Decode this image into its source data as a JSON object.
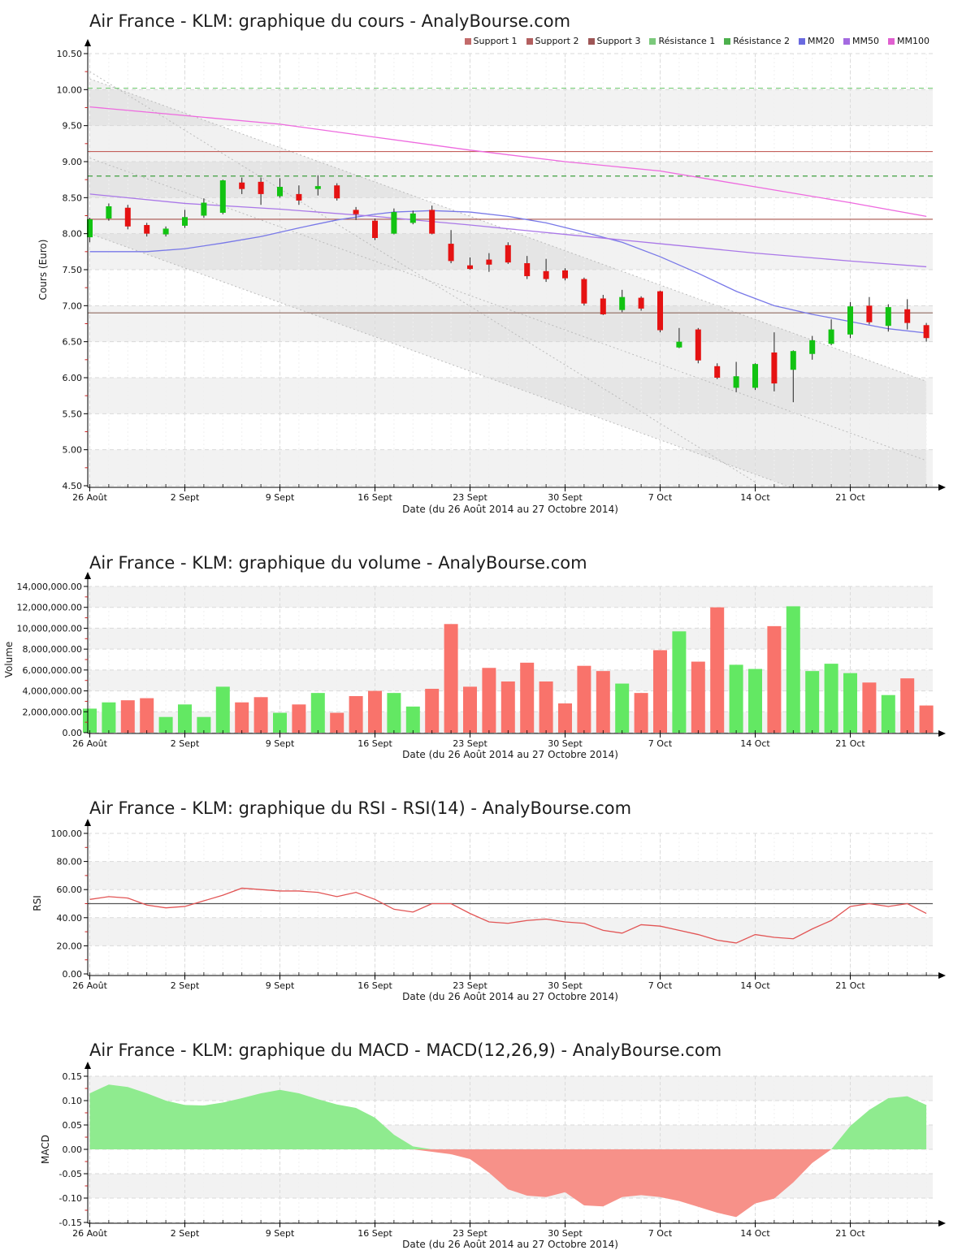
{
  "site": "AnalyBourse.com",
  "instrument": "Air France - KLM",
  "axis": {
    "caption": "Date (du 26 Août 2014 au 27 Octobre 2014)",
    "x_tick_labels": [
      "26 Août",
      "2 Sept",
      "9 Sept",
      "16 Sept",
      "23 Sept",
      "30 Sept",
      "7 Oct",
      "14 Oct",
      "21 Oct"
    ],
    "x_tick_days": [
      0,
      5,
      10,
      15,
      20,
      25,
      30,
      35,
      40
    ],
    "n_points": 45
  },
  "legend": [
    {
      "label": "Support 1",
      "color": "#C36B6B"
    },
    {
      "label": "Support 2",
      "color": "#B35F5F"
    },
    {
      "label": "Support 3",
      "color": "#9E5656"
    },
    {
      "label": "Résistance 1",
      "color": "#7BC97B"
    },
    {
      "label": "Résistance 2",
      "color": "#4DB04D"
    },
    {
      "label": "MM20",
      "color": "#6A6AE0"
    },
    {
      "label": "MM50",
      "color": "#A46AE0"
    },
    {
      "label": "MM100",
      "color": "#E060D0"
    }
  ],
  "chart_data": [
    {
      "type": "candlestick",
      "name": "price",
      "title": "Air France - KLM: graphique du cours - AnalyBourse.com",
      "ylabel": "Cours (Euro)",
      "xlabel": "Date (du 26 Août 2014 au 27 Octobre 2014)",
      "ylim": [
        4.5,
        10.5
      ],
      "y_ticks": [
        "10.50",
        "10.00",
        "9.50",
        "9.00",
        "8.50",
        "8.00",
        "7.50",
        "7.00",
        "6.50",
        "6.00",
        "5.50",
        "5.00",
        "4.50"
      ],
      "up_color": "#12C312",
      "down_color": "#E51212",
      "ohlc": [
        [
          7.95,
          8.22,
          7.88,
          8.2
        ],
        [
          8.21,
          8.42,
          8.18,
          8.38
        ],
        [
          8.36,
          8.4,
          8.06,
          8.1
        ],
        [
          8.12,
          8.15,
          7.96,
          8.0
        ],
        [
          7.99,
          8.1,
          7.96,
          8.07
        ],
        [
          8.11,
          8.33,
          8.08,
          8.23
        ],
        [
          8.25,
          8.49,
          8.22,
          8.43
        ],
        [
          8.29,
          8.75,
          8.27,
          8.74
        ],
        [
          8.71,
          8.78,
          8.55,
          8.62
        ],
        [
          8.72,
          8.78,
          8.4,
          8.55
        ],
        [
          8.52,
          8.77,
          8.5,
          8.65
        ],
        [
          8.55,
          8.67,
          8.4,
          8.46
        ],
        [
          8.62,
          8.81,
          8.53,
          8.66
        ],
        [
          8.67,
          8.7,
          8.46,
          8.49
        ],
        [
          8.33,
          8.37,
          8.19,
          8.27
        ],
        [
          8.18,
          8.21,
          7.91,
          7.94
        ],
        [
          8.0,
          8.35,
          7.99,
          8.3
        ],
        [
          8.15,
          8.32,
          8.13,
          8.28
        ],
        [
          8.33,
          8.39,
          7.99,
          8.0
        ],
        [
          7.86,
          8.05,
          7.59,
          7.62
        ],
        [
          7.56,
          7.67,
          7.5,
          7.51
        ],
        [
          7.64,
          7.73,
          7.47,
          7.57
        ],
        [
          7.84,
          7.88,
          7.58,
          7.6
        ],
        [
          7.59,
          7.69,
          7.37,
          7.41
        ],
        [
          7.48,
          7.65,
          7.33,
          7.37
        ],
        [
          7.49,
          7.52,
          7.35,
          7.38
        ],
        [
          7.37,
          7.39,
          7.0,
          7.03
        ],
        [
          7.1,
          7.15,
          6.87,
          6.88
        ],
        [
          6.94,
          7.22,
          6.91,
          7.12
        ],
        [
          7.11,
          7.13,
          6.93,
          6.96
        ],
        [
          7.2,
          7.21,
          6.63,
          6.66
        ],
        [
          6.42,
          6.69,
          6.41,
          6.5
        ],
        [
          6.67,
          6.69,
          6.2,
          6.24
        ],
        [
          6.16,
          6.2,
          5.98,
          6.0
        ],
        [
          5.86,
          6.22,
          5.8,
          6.02
        ],
        [
          5.86,
          6.2,
          5.83,
          6.19
        ],
        [
          6.35,
          6.63,
          5.81,
          5.92
        ],
        [
          6.11,
          6.38,
          5.66,
          6.37
        ],
        [
          6.33,
          6.58,
          6.25,
          6.52
        ],
        [
          6.47,
          6.81,
          6.45,
          6.67
        ],
        [
          6.6,
          7.05,
          6.55,
          6.99
        ],
        [
          7.0,
          7.12,
          6.74,
          6.77
        ],
        [
          6.72,
          7.02,
          6.64,
          6.98
        ],
        [
          6.95,
          7.09,
          6.67,
          6.76
        ],
        [
          6.73,
          6.76,
          6.5,
          6.55
        ]
      ],
      "levels": [
        {
          "name": "Support 1",
          "value": 9.14,
          "color": "#C4615C",
          "style": "solid"
        },
        {
          "name": "Support 2",
          "value": 8.2,
          "color": "#A8544E",
          "style": "solid"
        },
        {
          "name": "Support 3",
          "value": 6.9,
          "color": "#8F6A5F",
          "style": "solid"
        },
        {
          "name": "Résistance 1",
          "value": 10.02,
          "color": "#77CC77",
          "style": "dashed"
        },
        {
          "name": "Résistance 2",
          "value": 8.8,
          "color": "#3FA03F",
          "style": "dashed"
        }
      ],
      "moving_averages": [
        {
          "name": "MM20",
          "color": "#7878E8",
          "points": [
            [
              0,
              7.75
            ],
            [
              3,
              7.75
            ],
            [
              5,
              7.79
            ],
            [
              7,
              7.87
            ],
            [
              9,
              7.96
            ],
            [
              11,
              8.08
            ],
            [
              13,
              8.19
            ],
            [
              15,
              8.27
            ],
            [
              16,
              8.3
            ],
            [
              18,
              8.32
            ],
            [
              20,
              8.3
            ],
            [
              22,
              8.24
            ],
            [
              24,
              8.15
            ],
            [
              26,
              8.02
            ],
            [
              28,
              7.88
            ],
            [
              30,
              7.68
            ],
            [
              32,
              7.45
            ],
            [
              34,
              7.2
            ],
            [
              36,
              7.0
            ],
            [
              38,
              6.88
            ],
            [
              40,
              6.78
            ],
            [
              42,
              6.68
            ],
            [
              44,
              6.62
            ]
          ]
        },
        {
          "name": "MM50",
          "color": "#AA78E8",
          "points": [
            [
              0,
              8.55
            ],
            [
              5,
              8.42
            ],
            [
              10,
              8.34
            ],
            [
              15,
              8.24
            ],
            [
              20,
              8.12
            ],
            [
              25,
              7.99
            ],
            [
              30,
              7.86
            ],
            [
              35,
              7.73
            ],
            [
              40,
              7.62
            ],
            [
              44,
              7.54
            ]
          ]
        },
        {
          "name": "MM100",
          "color": "#EE6ADF",
          "points": [
            [
              0,
              9.76
            ],
            [
              5,
              9.64
            ],
            [
              10,
              9.52
            ],
            [
              15,
              9.34
            ],
            [
              20,
              9.16
            ],
            [
              25,
              9.0
            ],
            [
              30,
              8.87
            ],
            [
              35,
              8.65
            ],
            [
              40,
              8.43
            ],
            [
              44,
              8.24
            ]
          ]
        }
      ],
      "channel": {
        "line_color": "#BBBBBB",
        "fill_color": "rgba(120,120,120,0.10)",
        "fill_between": [
          0,
          2
        ],
        "lines": [
          {
            "x": [
              0,
              44
            ],
            "y": [
              10.15,
              5.95
            ]
          },
          {
            "x": [
              0,
              44
            ],
            "y": [
              9.05,
              4.85
            ]
          },
          {
            "x": [
              0,
              44
            ],
            "y": [
              8.0,
              3.8
            ]
          },
          {
            "x": [
              0,
              35
            ],
            "y": [
              10.25,
              4.55
            ]
          }
        ]
      }
    },
    {
      "type": "bar",
      "name": "volume",
      "title": "Air France - KLM: graphique du volume - AnalyBourse.com",
      "ylabel": "Volume",
      "xlabel": "Date (du 26 Août 2014 au 27 Octobre 2014)",
      "ylim": [
        0,
        14000000
      ],
      "y_ticks": [
        "14,000,000.00",
        "12,000,000.00",
        "10,000,000.00",
        "8,000,000.00",
        "6,000,000.00",
        "4,000,000.00",
        "2,000,000.00",
        "0.00"
      ],
      "up_color": "#63E863",
      "down_color": "#F9736B",
      "values": [
        2300000,
        2900000,
        3100000,
        3300000,
        1500000,
        2700000,
        1500000,
        4400000,
        2900000,
        3400000,
        1900000,
        2700000,
        3800000,
        1900000,
        3500000,
        4000000,
        3800000,
        2500000,
        4200000,
        10400000,
        4400000,
        6200000,
        4900000,
        6700000,
        4900000,
        2800000,
        6400000,
        5900000,
        4700000,
        3800000,
        7900000,
        9700000,
        6800000,
        12000000,
        6500000,
        6100000,
        10200000,
        12100000,
        5900000,
        6600000,
        5700000,
        4800000,
        3600000,
        5200000,
        2600000
      ],
      "directions": [
        "u",
        "u",
        "d",
        "d",
        "u",
        "u",
        "u",
        "u",
        "d",
        "d",
        "u",
        "d",
        "u",
        "d",
        "d",
        "d",
        "u",
        "u",
        "d",
        "d",
        "d",
        "d",
        "d",
        "d",
        "d",
        "d",
        "d",
        "d",
        "u",
        "d",
        "d",
        "u",
        "d",
        "d",
        "u",
        "u",
        "d",
        "u",
        "u",
        "u",
        "u",
        "d",
        "u",
        "d",
        "d"
      ]
    },
    {
      "type": "line",
      "name": "rsi",
      "title": "Air France - KLM: graphique du RSI - RSI(14) - AnalyBourse.com",
      "ylabel": "RSI",
      "xlabel": "Date (du 26 Août 2014 au 27 Octobre 2014)",
      "ylim": [
        0,
        100
      ],
      "y_ticks": [
        "100.00",
        "80.00",
        "60.00",
        "40.00",
        "20.00",
        "0.00"
      ],
      "line_color": "#E25555",
      "midline": {
        "value": 50,
        "color": "#555555"
      },
      "values": [
        53,
        55,
        54,
        49,
        47,
        48,
        52,
        56,
        61,
        60,
        59,
        59,
        58,
        55,
        58,
        53,
        46,
        44,
        50,
        50,
        43,
        37,
        36,
        38,
        39,
        37,
        36,
        31,
        29,
        35,
        34,
        31,
        28,
        24,
        22,
        28,
        26,
        25,
        32,
        38,
        48,
        50,
        48,
        50,
        43
      ]
    },
    {
      "type": "area",
      "name": "macd",
      "title": "Air France - KLM: graphique du MACD - MACD(12,26,9) - AnalyBourse.com",
      "ylabel": "MACD",
      "xlabel": "Date (du 26 Août 2014 au 27 Octobre 2014)",
      "ylim": [
        -0.15,
        0.15
      ],
      "y_ticks": [
        "0.15",
        "0.10",
        "0.05",
        "0.00",
        "-0.05",
        "-0.10",
        "-0.15"
      ],
      "pos_color": "#8FEB8F",
      "neg_color": "#F79189",
      "values": [
        0.115,
        0.133,
        0.128,
        0.115,
        0.1,
        0.091,
        0.09,
        0.096,
        0.105,
        0.115,
        0.122,
        0.115,
        0.103,
        0.092,
        0.085,
        0.065,
        0.03,
        0.006,
        -0.005,
        -0.01,
        -0.02,
        -0.048,
        -0.082,
        -0.095,
        -0.098,
        -0.088,
        -0.115,
        -0.117,
        -0.098,
        -0.094,
        -0.098,
        -0.106,
        -0.118,
        -0.13,
        -0.139,
        -0.111,
        -0.101,
        -0.068,
        -0.028,
        0.0,
        0.048,
        0.081,
        0.105,
        0.109,
        0.091
      ]
    }
  ]
}
